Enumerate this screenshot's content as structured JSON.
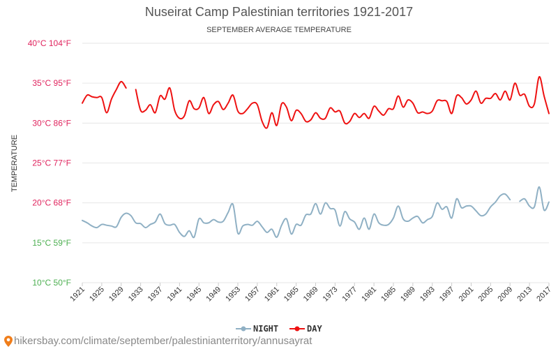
{
  "chart_data": {
    "type": "line",
    "title": "Nuseirat Camp Palestinian territories 1921-2017",
    "subtitle": "SEPTEMBER AVERAGE TEMPERATURE",
    "ylabel": "TEMPERATURE",
    "ylim": [
      10,
      40
    ],
    "y_ticks": [
      {
        "value": 40,
        "label": "40°C 104°F",
        "color": "#e0245e"
      },
      {
        "value": 35,
        "label": "35°C 95°F",
        "color": "#e0245e"
      },
      {
        "value": 30,
        "label": "30°C 86°F",
        "color": "#e0245e"
      },
      {
        "value": 25,
        "label": "25°C 77°F",
        "color": "#e0245e"
      },
      {
        "value": 20,
        "label": "20°C 68°F",
        "color": "#e0245e"
      },
      {
        "value": 15,
        "label": "15°C 59°F",
        "color": "#4caf50"
      },
      {
        "value": 10,
        "label": "10°C 50°F",
        "color": "#4caf50"
      }
    ],
    "x_range": [
      1921,
      2017
    ],
    "x_ticks": [
      "1921",
      "1925",
      "1929",
      "1933",
      "1937",
      "1941",
      "1945",
      "1949",
      "1953",
      "1957",
      "1961",
      "1965",
      "1969",
      "1973",
      "1977",
      "1981",
      "1985",
      "1989",
      "1993",
      "1997",
      "2001",
      "2005",
      "2009",
      "2013",
      "2017"
    ],
    "series": [
      {
        "name": "DAY",
        "color": "#ee1111",
        "segments": [
          [
            [
              1921,
              32.5
            ],
            [
              1922,
              33.5
            ],
            [
              1923,
              33.3
            ],
            [
              1924,
              33.2
            ],
            [
              1925,
              33.2
            ],
            [
              1926,
              31.3
            ],
            [
              1927,
              33.0
            ],
            [
              1928,
              34.2
            ],
            [
              1929,
              35.2
            ],
            [
              1930,
              34.4
            ]
          ],
          [
            [
              1932,
              34.2
            ],
            [
              1933,
              31.6
            ],
            [
              1934,
              31.6
            ],
            [
              1935,
              32.3
            ],
            [
              1936,
              31.3
            ],
            [
              1937,
              33.4
            ],
            [
              1938,
              33.0
            ],
            [
              1939,
              34.4
            ],
            [
              1940,
              31.6
            ],
            [
              1941,
              30.6
            ],
            [
              1942,
              30.9
            ],
            [
              1943,
              32.8
            ],
            [
              1944,
              31.8
            ],
            [
              1945,
              31.9
            ],
            [
              1946,
              33.2
            ],
            [
              1947,
              31.2
            ],
            [
              1948,
              32.3
            ],
            [
              1949,
              32.7
            ],
            [
              1950,
              31.7
            ],
            [
              1951,
              32.5
            ],
            [
              1952,
              33.5
            ],
            [
              1953,
              31.5
            ],
            [
              1954,
              31.2
            ],
            [
              1955,
              31.8
            ],
            [
              1956,
              32.5
            ],
            [
              1957,
              32.3
            ],
            [
              1958,
              30.2
            ],
            [
              1959,
              29.4
            ],
            [
              1960,
              31.3
            ],
            [
              1961,
              29.7
            ],
            [
              1962,
              32.4
            ],
            [
              1963,
              32.0
            ],
            [
              1964,
              30.3
            ],
            [
              1965,
              31.6
            ],
            [
              1966,
              31.2
            ],
            [
              1967,
              30.2
            ],
            [
              1968,
              30.4
            ],
            [
              1969,
              31.3
            ],
            [
              1970,
              30.6
            ],
            [
              1971,
              30.6
            ],
            [
              1972,
              31.9
            ],
            [
              1973,
              31.4
            ],
            [
              1974,
              31.5
            ],
            [
              1975,
              30.0
            ],
            [
              1976,
              30.2
            ],
            [
              1977,
              31.2
            ],
            [
              1978,
              30.7
            ],
            [
              1979,
              31.2
            ],
            [
              1980,
              30.6
            ],
            [
              1981,
              32.1
            ],
            [
              1982,
              31.5
            ],
            [
              1983,
              31.0
            ],
            [
              1984,
              31.8
            ],
            [
              1985,
              31.8
            ],
            [
              1986,
              33.4
            ],
            [
              1987,
              32.0
            ],
            [
              1988,
              32.9
            ],
            [
              1989,
              32.5
            ],
            [
              1990,
              31.3
            ],
            [
              1991,
              31.4
            ],
            [
              1992,
              31.2
            ],
            [
              1993,
              31.5
            ],
            [
              1994,
              32.8
            ],
            [
              1995,
              32.8
            ],
            [
              1996,
              32.7
            ],
            [
              1997,
              31.2
            ],
            [
              1998,
              33.4
            ],
            [
              1999,
              33.2
            ],
            [
              2000,
              32.4
            ],
            [
              2001,
              32.9
            ],
            [
              2002,
              34.0
            ],
            [
              2003,
              32.5
            ],
            [
              2004,
              33.1
            ],
            [
              2005,
              33.1
            ],
            [
              2006,
              33.7
            ],
            [
              2007,
              32.9
            ],
            [
              2008,
              34.0
            ],
            [
              2009,
              32.9
            ],
            [
              2010,
              35.0
            ],
            [
              2011,
              33.5
            ],
            [
              2012,
              33.6
            ],
            [
              2013,
              32.1
            ],
            [
              2014,
              32.4
            ],
            [
              2015,
              35.8
            ],
            [
              2016,
              33.4
            ],
            [
              2017,
              31.2
            ]
          ]
        ]
      },
      {
        "name": "NIGHT",
        "color": "#8fb0c4",
        "segments": [
          [
            [
              1921,
              17.8
            ],
            [
              1922,
              17.5
            ],
            [
              1923,
              17.1
            ],
            [
              1924,
              16.9
            ],
            [
              1925,
              17.3
            ],
            [
              1926,
              17.2
            ],
            [
              1927,
              17.1
            ],
            [
              1928,
              17.0
            ],
            [
              1929,
              18.2
            ],
            [
              1930,
              18.7
            ],
            [
              1931,
              18.4
            ],
            [
              1932,
              17.5
            ],
            [
              1933,
              17.4
            ],
            [
              1934,
              16.9
            ],
            [
              1935,
              17.3
            ],
            [
              1936,
              17.6
            ],
            [
              1937,
              18.6
            ],
            [
              1938,
              17.4
            ],
            [
              1939,
              17.2
            ],
            [
              1940,
              17.3
            ],
            [
              1941,
              16.3
            ],
            [
              1942,
              15.8
            ],
            [
              1943,
              16.5
            ],
            [
              1944,
              15.7
            ],
            [
              1945,
              18.0
            ],
            [
              1946,
              17.5
            ],
            [
              1947,
              17.5
            ],
            [
              1948,
              17.9
            ],
            [
              1949,
              17.6
            ],
            [
              1950,
              17.7
            ],
            [
              1951,
              18.8
            ],
            [
              1952,
              19.8
            ],
            [
              1953,
              16.2
            ],
            [
              1954,
              17.1
            ],
            [
              1955,
              17.3
            ],
            [
              1956,
              17.2
            ],
            [
              1957,
              17.7
            ],
            [
              1958,
              17.0
            ],
            [
              1959,
              16.3
            ],
            [
              1960,
              16.7
            ],
            [
              1961,
              15.7
            ],
            [
              1962,
              17.2
            ],
            [
              1963,
              18.0
            ],
            [
              1964,
              16.1
            ],
            [
              1965,
              17.3
            ],
            [
              1966,
              17.2
            ],
            [
              1967,
              18.5
            ],
            [
              1968,
              18.6
            ],
            [
              1969,
              19.9
            ],
            [
              1970,
              18.6
            ],
            [
              1971,
              20.0
            ],
            [
              1972,
              19.3
            ],
            [
              1973,
              19.1
            ],
            [
              1974,
              17.1
            ],
            [
              1975,
              18.9
            ],
            [
              1976,
              18.0
            ],
            [
              1977,
              17.6
            ],
            [
              1978,
              16.7
            ],
            [
              1979,
              18.1
            ],
            [
              1980,
              16.7
            ],
            [
              1981,
              18.6
            ],
            [
              1982,
              17.5
            ],
            [
              1983,
              17.2
            ],
            [
              1984,
              17.3
            ],
            [
              1985,
              18.1
            ],
            [
              1986,
              19.6
            ],
            [
              1987,
              18.0
            ],
            [
              1988,
              17.7
            ],
            [
              1989,
              18.1
            ],
            [
              1990,
              18.3
            ],
            [
              1991,
              17.5
            ],
            [
              1992,
              17.9
            ],
            [
              1993,
              18.3
            ],
            [
              1994,
              20.0
            ],
            [
              1995,
              19.2
            ],
            [
              1996,
              19.5
            ],
            [
              1997,
              18.1
            ],
            [
              1998,
              20.5
            ],
            [
              1999,
              19.4
            ],
            [
              2000,
              19.6
            ],
            [
              2001,
              19.6
            ],
            [
              2002,
              19.0
            ],
            [
              2003,
              18.4
            ],
            [
              2004,
              18.6
            ],
            [
              2005,
              19.5
            ],
            [
              2006,
              20.1
            ],
            [
              2007,
              20.9
            ],
            [
              2008,
              21.1
            ],
            [
              2009,
              20.4
            ]
          ],
          [
            [
              2011,
              20.2
            ],
            [
              2012,
              20.5
            ],
            [
              2013,
              19.6
            ],
            [
              2014,
              19.5
            ],
            [
              2015,
              22.0
            ],
            [
              2016,
              19.1
            ],
            [
              2017,
              20.1
            ]
          ]
        ]
      }
    ],
    "legend_position": "bottom-center"
  },
  "legend": [
    {
      "label": "NIGHT",
      "color": "#8fb0c4"
    },
    {
      "label": "DAY",
      "color": "#ee1111"
    }
  ],
  "footer": {
    "text": "hikersbay.com/climate/september/palestinianterritory/annusayrat",
    "pin_color": "#f07e1b"
  }
}
